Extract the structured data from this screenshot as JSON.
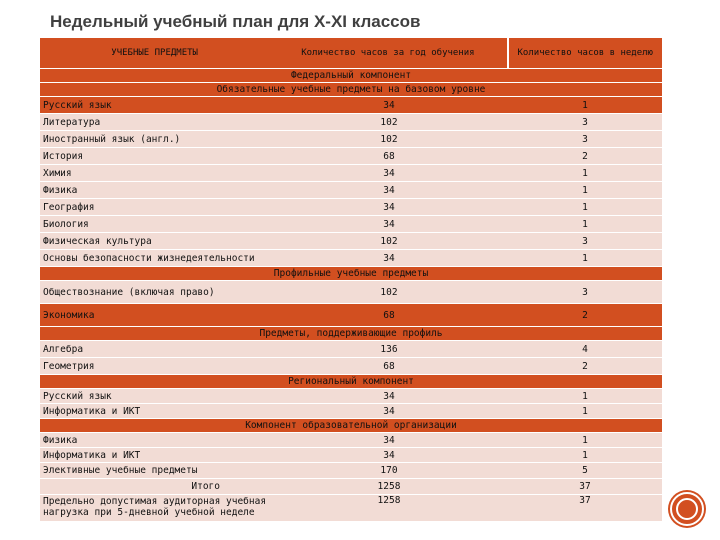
{
  "title": "Недельный учебный план для X-XI классов",
  "header": {
    "subjects": "УЧЕБНЫЕ ПРЕДМЕТЫ",
    "hours_year": "Количество часов за год обучения",
    "hours_week": "Количество часов в неделю"
  },
  "sections": {
    "federal": "Федеральный компонент",
    "base": "Обязательные учебные предметы на базовом уровне",
    "profile": "Профильные учебные предметы",
    "supporting": "Предметы, поддерживающие профиль",
    "regional": "Региональный компонент",
    "school": "Компонент образовательной организации"
  },
  "base_rows": [
    {
      "name": "Русский язык",
      "year": "34",
      "week": "1"
    },
    {
      "name": "Литература",
      "year": "102",
      "week": "3"
    },
    {
      "name": "Иностранный язык (англ.)",
      "year": "102",
      "week": "3"
    },
    {
      "name": "История",
      "year": "68",
      "week": "2"
    },
    {
      "name": "Химия",
      "year": "34",
      "week": "1"
    },
    {
      "name": "Физика",
      "year": "34",
      "week": "1"
    },
    {
      "name": "География",
      "year": "34",
      "week": "1"
    },
    {
      "name": "Биология",
      "year": "34",
      "week": "1"
    },
    {
      "name": "Физическая культура",
      "year": "102",
      "week": "3"
    },
    {
      "name": "Основы безопасности жизнедеятельности",
      "year": "34",
      "week": "1"
    }
  ],
  "profile_rows": [
    {
      "name": "Обществознание (включая право)",
      "year": "102",
      "week": "3"
    },
    {
      "name": "Экономика",
      "year": "68",
      "week": "2"
    }
  ],
  "supporting_rows": [
    {
      "name": "Алгебра",
      "year": "136",
      "week": "4"
    },
    {
      "name": "Геометрия",
      "year": "68",
      "week": "2"
    }
  ],
  "regional_rows": [
    {
      "name": "Русский язык",
      "year": "34",
      "week": "1"
    },
    {
      "name": "Информатика и ИКТ",
      "year": "34",
      "week": "1"
    }
  ],
  "school_rows": [
    {
      "name": "Физика",
      "year": "34",
      "week": "1"
    },
    {
      "name": "Информатика и ИКТ",
      "year": "34",
      "week": "1"
    },
    {
      "name": "Элективные учебные предметы",
      "year": "170",
      "week": "5"
    }
  ],
  "total": {
    "name": "Итого",
    "year": "1258",
    "week": "37"
  },
  "max_load": {
    "name": "Предельно допустимая аудиторная учебная нагрузка при 5-дневной учебной неделе",
    "year": "1258",
    "week": "37"
  }
}
